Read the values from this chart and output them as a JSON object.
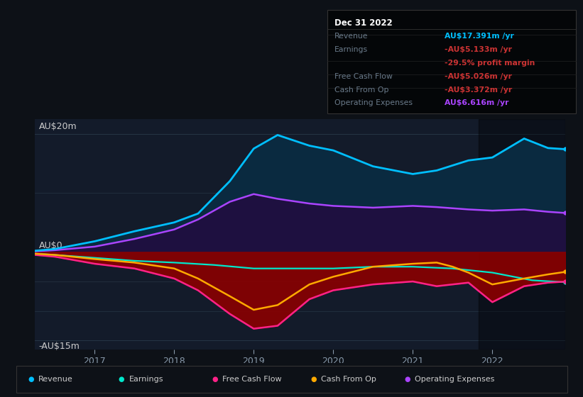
{
  "bg_color": "#0d1117",
  "plot_bg_color": "#131b2a",
  "ylabel_top": "AU$20m",
  "ylabel_zero": "AU$0",
  "ylabel_bot": "-AU$15m",
  "x_ticks": [
    2017,
    2018,
    2019,
    2020,
    2021,
    2022
  ],
  "x_min": 2016.25,
  "x_max": 2022.92,
  "y_min": -16.5,
  "y_max": 22.5,
  "revenue": {
    "x": [
      2016.25,
      2016.5,
      2017.0,
      2017.5,
      2018.0,
      2018.3,
      2018.7,
      2019.0,
      2019.3,
      2019.7,
      2020.0,
      2020.5,
      2021.0,
      2021.3,
      2021.7,
      2022.0,
      2022.4,
      2022.7,
      2022.92
    ],
    "y": [
      0.2,
      0.5,
      1.8,
      3.5,
      5.0,
      6.5,
      12.0,
      17.5,
      19.8,
      18.0,
      17.2,
      14.5,
      13.2,
      13.8,
      15.5,
      16.0,
      19.2,
      17.6,
      17.4
    ],
    "color": "#00bfff",
    "fill_color": "#0a2a40",
    "lw": 2.0
  },
  "op_expenses": {
    "x": [
      2016.25,
      2016.5,
      2017.0,
      2017.5,
      2018.0,
      2018.3,
      2018.7,
      2019.0,
      2019.3,
      2019.7,
      2020.0,
      2020.5,
      2021.0,
      2021.3,
      2021.7,
      2022.0,
      2022.4,
      2022.7,
      2022.92
    ],
    "y": [
      0.1,
      0.3,
      0.9,
      2.2,
      3.8,
      5.5,
      8.5,
      9.8,
      9.0,
      8.2,
      7.8,
      7.5,
      7.8,
      7.6,
      7.2,
      7.0,
      7.2,
      6.8,
      6.6
    ],
    "color": "#aa44ff",
    "fill_color": "#1e1040",
    "lw": 1.8
  },
  "earnings": {
    "x": [
      2016.25,
      2016.5,
      2017.0,
      2017.5,
      2018.0,
      2018.5,
      2019.0,
      2019.5,
      2020.0,
      2020.5,
      2021.0,
      2021.5,
      2022.0,
      2022.5,
      2022.92
    ],
    "y": [
      -0.3,
      -0.5,
      -1.0,
      -1.5,
      -1.8,
      -2.2,
      -2.8,
      -2.8,
      -2.8,
      -2.5,
      -2.5,
      -2.8,
      -3.5,
      -4.8,
      -5.133
    ],
    "color": "#00e8cc",
    "lw": 1.6
  },
  "fcf": {
    "x": [
      2016.25,
      2016.5,
      2017.0,
      2017.5,
      2018.0,
      2018.3,
      2018.7,
      2019.0,
      2019.3,
      2019.7,
      2020.0,
      2020.5,
      2021.0,
      2021.3,
      2021.5,
      2021.7,
      2022.0,
      2022.4,
      2022.7,
      2022.92
    ],
    "y": [
      -0.5,
      -0.8,
      -2.0,
      -2.8,
      -4.5,
      -6.5,
      -10.5,
      -13.0,
      -12.5,
      -8.0,
      -6.5,
      -5.5,
      -5.0,
      -5.8,
      -5.5,
      -5.2,
      -8.5,
      -5.8,
      -5.2,
      -5.026
    ],
    "color": "#ff2288",
    "fill_color": "#8b0000",
    "lw": 1.8
  },
  "cashfromop": {
    "x": [
      2016.25,
      2016.5,
      2017.0,
      2017.5,
      2018.0,
      2018.3,
      2018.7,
      2019.0,
      2019.3,
      2019.7,
      2020.0,
      2020.5,
      2021.0,
      2021.3,
      2021.5,
      2021.7,
      2022.0,
      2022.4,
      2022.7,
      2022.92
    ],
    "y": [
      -0.3,
      -0.5,
      -1.2,
      -1.8,
      -2.8,
      -4.5,
      -7.5,
      -9.8,
      -9.0,
      -5.5,
      -4.2,
      -2.5,
      -2.0,
      -1.8,
      -2.5,
      -3.5,
      -5.5,
      -4.5,
      -3.8,
      -3.372
    ],
    "color": "#ffaa00",
    "lw": 1.8
  },
  "highlight_x_start": 2021.83,
  "highlight_x_end": 2022.92,
  "info_box": {
    "title": "Dec 31 2022",
    "rows": [
      {
        "label": "Revenue",
        "value": "AU$17.391m /yr",
        "value_color": "#00bfff"
      },
      {
        "label": "Earnings",
        "value": "-AU$5.133m /yr",
        "value_color": "#cc3333"
      },
      {
        "label": "",
        "value": "-29.5% profit margin",
        "value_color": "#cc3333"
      },
      {
        "label": "Free Cash Flow",
        "value": "-AU$5.026m /yr",
        "value_color": "#cc3333"
      },
      {
        "label": "Cash From Op",
        "value": "-AU$3.372m /yr",
        "value_color": "#cc3333"
      },
      {
        "label": "Operating Expenses",
        "value": "AU$6.616m /yr",
        "value_color": "#aa44ff"
      }
    ]
  },
  "legend_items": [
    {
      "label": "Revenue",
      "color": "#00bfff"
    },
    {
      "label": "Earnings",
      "color": "#00e8cc"
    },
    {
      "label": "Free Cash Flow",
      "color": "#ff2288"
    },
    {
      "label": "Cash From Op",
      "color": "#ffaa00"
    },
    {
      "label": "Operating Expenses",
      "color": "#aa44ff"
    }
  ],
  "grid_color": "#263545",
  "text_color": "#8899aa",
  "label_color": "#cccccc"
}
